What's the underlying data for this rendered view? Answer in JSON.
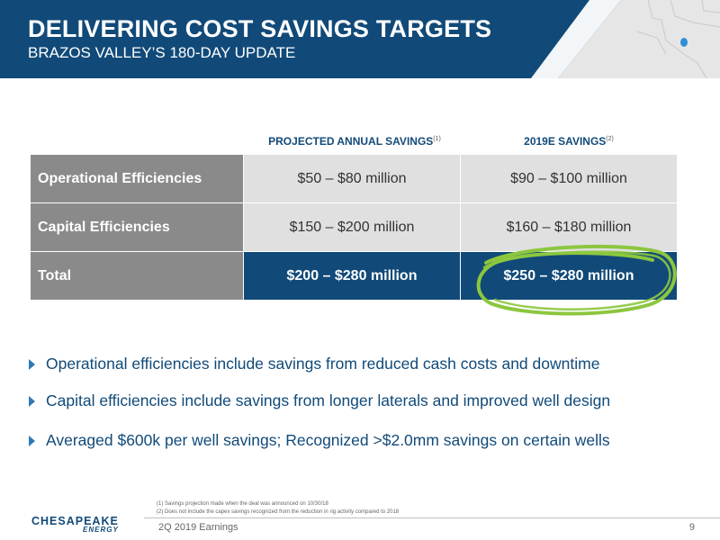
{
  "header": {
    "title": "DELIVERING COST SAVINGS TARGETS",
    "subtitle": "BRAZOS VALLEY’S 180-DAY UPDATE"
  },
  "table": {
    "columns": [
      {
        "label": "PROJECTED ANNUAL SAVINGS",
        "note": "(1)"
      },
      {
        "label": "2019E SAVINGS",
        "note": "(2)"
      }
    ],
    "rows": [
      {
        "label": "Operational Efficiencies",
        "projected": "$50 – $80 million",
        "savings_2019e": "$90 – $100 million"
      },
      {
        "label": "Capital Efficiencies",
        "projected": "$150 – $200 million",
        "savings_2019e": "$160 – $180 million"
      },
      {
        "label": "Total",
        "projected": "$200 – $280 million",
        "savings_2019e": "$250 – $280 million"
      }
    ],
    "highlight_color": "#8cc63f"
  },
  "bullets": [
    "Operational efficiencies include savings from reduced cash costs and downtime",
    "Capital efficiencies include savings from longer laterals and improved well design",
    "Averaged $600k per well savings; Recognized >$2.0mm savings on certain wells"
  ],
  "footnotes": [
    "(1)  Savings projection made when the deal was announced on 10/30/18",
    "(2)  Does not include the capex savings recognized from the reduction in rig activity compared to 2018"
  ],
  "footer": {
    "label": "2Q 2019 Earnings",
    "page": "9",
    "logo_name": "CHESAPEAKE",
    "logo_sub": "ENERGY"
  },
  "colors": {
    "brand_navy": "#114a79",
    "accent_blue": "#2e79b5",
    "row_label_gray": "#8a8a8a",
    "cell_gray": "#e0e0e0"
  }
}
